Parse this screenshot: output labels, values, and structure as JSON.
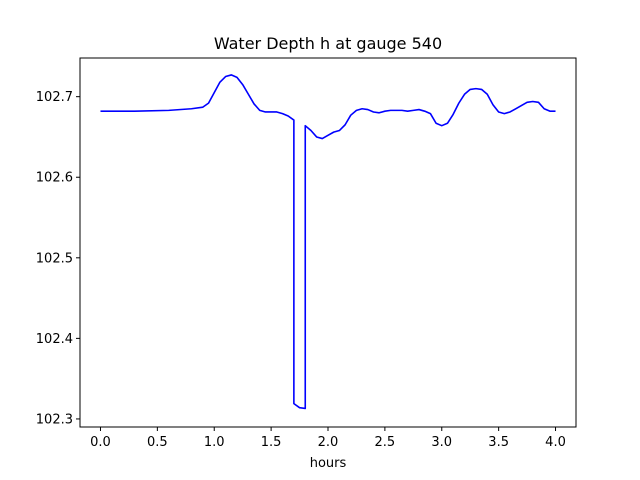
{
  "chart_data": {
    "type": "line",
    "title": "Water Depth h at gauge 540",
    "xlabel": "hours",
    "ylabel": "",
    "xlim": [
      -0.18,
      4.18
    ],
    "ylim": [
      102.29,
      102.748
    ],
    "grid": false,
    "legend": "none",
    "x_ticks": [
      0.0,
      0.5,
      1.0,
      1.5,
      2.0,
      2.5,
      3.0,
      3.5,
      4.0
    ],
    "x_tick_labels": [
      "0.0",
      "0.5",
      "1.0",
      "1.5",
      "2.0",
      "2.5",
      "3.0",
      "3.5",
      "4.0"
    ],
    "y_ticks": [
      102.3,
      102.4,
      102.5,
      102.6,
      102.7
    ],
    "y_tick_labels": [
      "102.3",
      "102.4",
      "102.5",
      "102.6",
      "102.7"
    ],
    "series": [
      {
        "color": "#0000ff",
        "x": [
          0.0,
          0.3,
          0.6,
          0.8,
          0.9,
          0.95,
          1.0,
          1.05,
          1.1,
          1.15,
          1.2,
          1.25,
          1.3,
          1.35,
          1.4,
          1.45,
          1.5,
          1.55,
          1.6,
          1.65,
          1.7,
          1.7,
          1.75,
          1.8,
          1.8,
          1.85,
          1.9,
          1.95,
          2.0,
          2.05,
          2.1,
          2.15,
          2.2,
          2.25,
          2.3,
          2.35,
          2.4,
          2.45,
          2.5,
          2.55,
          2.6,
          2.65,
          2.7,
          2.75,
          2.8,
          2.85,
          2.9,
          2.95,
          3.0,
          3.05,
          3.1,
          3.15,
          3.2,
          3.25,
          3.3,
          3.35,
          3.4,
          3.45,
          3.5,
          3.55,
          3.6,
          3.65,
          3.7,
          3.75,
          3.8,
          3.85,
          3.9,
          3.95,
          4.0
        ],
        "y": [
          102.682,
          102.682,
          102.683,
          102.685,
          102.687,
          102.692,
          102.705,
          102.718,
          102.725,
          102.727,
          102.724,
          102.715,
          102.703,
          102.691,
          102.683,
          102.681,
          102.681,
          102.681,
          102.679,
          102.676,
          102.671,
          102.319,
          102.314,
          102.313,
          102.664,
          102.658,
          102.65,
          102.648,
          102.652,
          102.656,
          102.658,
          102.665,
          102.677,
          102.683,
          102.685,
          102.684,
          102.681,
          102.68,
          102.682,
          102.683,
          102.683,
          102.683,
          102.682,
          102.683,
          102.684,
          102.682,
          102.679,
          102.667,
          102.664,
          102.667,
          102.678,
          102.692,
          102.703,
          102.709,
          102.71,
          102.709,
          102.703,
          102.69,
          102.681,
          102.679,
          102.681,
          102.685,
          102.689,
          102.693,
          102.694,
          102.693,
          102.685,
          102.682,
          102.682
        ]
      }
    ]
  }
}
